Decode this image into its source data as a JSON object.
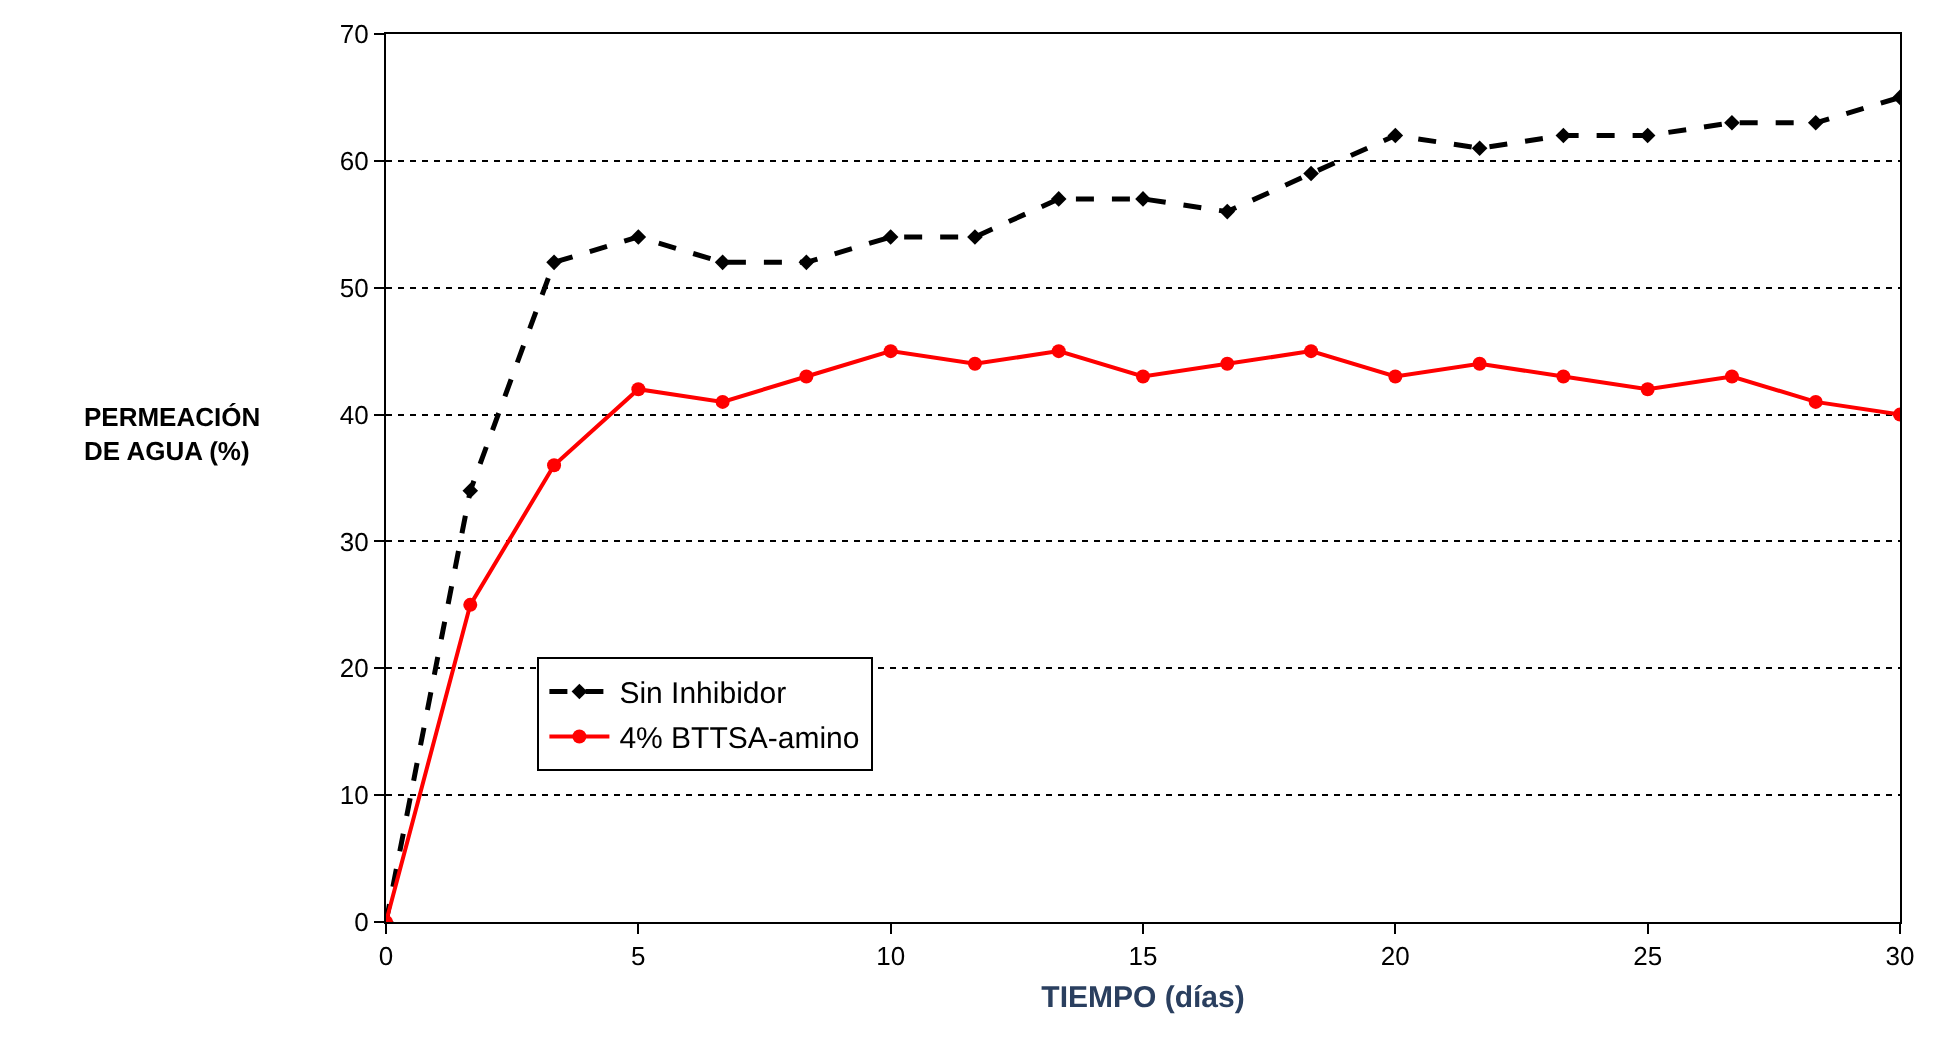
{
  "chart_data": {
    "type": "line",
    "xlabel": "TIEMPO (días)",
    "ylabel": "PERMEACIÓN\nDE AGUA (%)",
    "x": [
      0,
      1.67,
      3.33,
      5,
      6.67,
      8.33,
      10,
      11.67,
      13.33,
      15,
      16.67,
      18.33,
      20,
      21.67,
      23.33,
      25,
      26.67,
      28.33,
      30
    ],
    "series": [
      {
        "name": "Sin Inhibidor",
        "color": "#000000",
        "line_style": "dashed",
        "marker": "diamond",
        "values": [
          0,
          34,
          52,
          54,
          52,
          52,
          54,
          54,
          57,
          57,
          56,
          59,
          62,
          61,
          62,
          62,
          63,
          63,
          65
        ]
      },
      {
        "name": "4% BTTSA-amino",
        "color": "#ff0000",
        "line_style": "solid",
        "marker": "circle",
        "values": [
          0,
          25,
          36,
          42,
          41,
          43,
          45,
          44,
          45,
          43,
          44,
          45,
          43,
          44,
          43,
          42,
          43,
          41,
          40
        ]
      }
    ],
    "xlim": [
      0,
      30
    ],
    "xticks": [
      0,
      5,
      10,
      15,
      20,
      25,
      30
    ],
    "ylim": [
      0,
      70
    ],
    "yticks": [
      0,
      10,
      20,
      30,
      40,
      50,
      60,
      70
    ],
    "grid": "y",
    "legend": "bottom left"
  }
}
